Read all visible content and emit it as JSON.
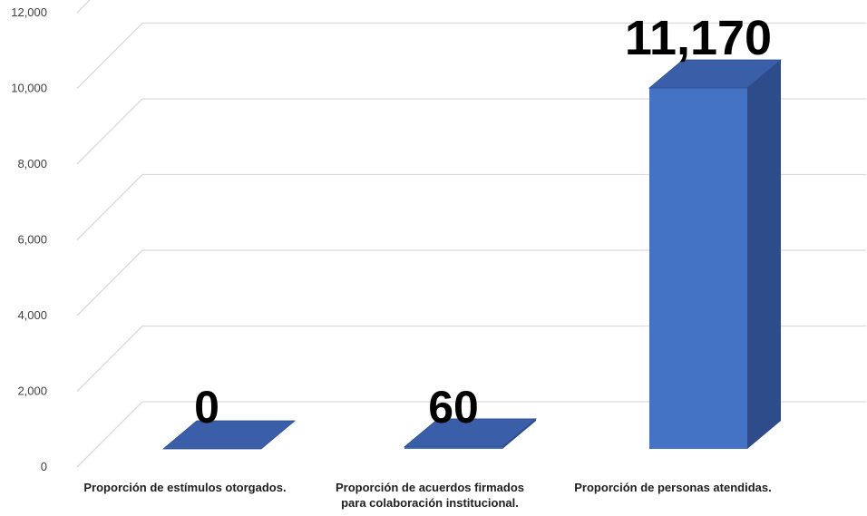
{
  "chart_data": {
    "type": "bar",
    "style": "3d-column",
    "categories": [
      [
        "Proporción de estímulos otorgados."
      ],
      [
        "Proporción de acuerdos firmados",
        "para colaboración institucional."
      ],
      [
        "Proporción de personas atendidas."
      ]
    ],
    "values": [
      0,
      60,
      11170
    ],
    "data_labels": [
      "0",
      "60",
      "11,170"
    ],
    "y_ticks": [
      "0",
      "2,000",
      "4,000",
      "6,000",
      "8,000",
      "10,000",
      "12,000"
    ],
    "ylim": [
      0,
      12000
    ],
    "grid": true,
    "legend": "none",
    "colors": {
      "front": "#4472C4",
      "side": "#2E4B8A",
      "top": "#3A5FA8",
      "grid": "#D9D9D9"
    }
  }
}
